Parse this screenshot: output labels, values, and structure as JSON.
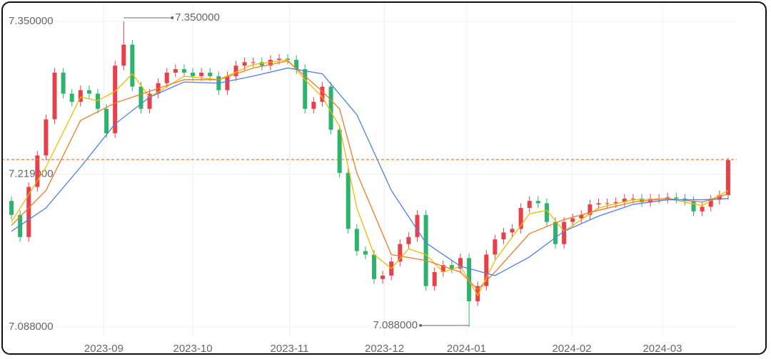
{
  "chart_data": {
    "type": "candlestick",
    "xlim": [
      -0.5,
      84
    ],
    "xticks": [
      {
        "value": 10.7,
        "label": "2023-09"
      },
      {
        "value": 21,
        "label": "2023-10"
      },
      {
        "value": 32.2,
        "label": "2023-11"
      },
      {
        "value": 43.2,
        "label": "2023-12"
      },
      {
        "value": 52.7,
        "label": "2024-01"
      },
      {
        "value": 64.9,
        "label": "2024-02"
      },
      {
        "value": 75.4,
        "label": "2024-03"
      }
    ],
    "ylim": [
      7.08,
      7.36
    ],
    "yticks": [
      {
        "value": 7.35,
        "label": "7.350000"
      },
      {
        "value": 7.219,
        "label": "7.219000"
      },
      {
        "value": 7.088,
        "label": "7.088000"
      }
    ],
    "grid": true,
    "up_color": "#e8404a",
    "down_color": "#2db36b",
    "open": [
      7.196,
      7.184,
      7.165,
      7.208,
      7.235,
      7.266,
      7.306,
      7.288,
      7.281,
      7.291,
      7.288,
      7.275,
      7.254,
      7.312,
      7.33,
      7.294,
      7.275,
      7.288,
      7.297,
      7.306,
      7.309,
      7.306,
      7.303,
      7.306,
      7.303,
      7.291,
      7.303,
      7.312,
      7.315,
      7.315,
      7.312,
      7.317,
      7.318,
      7.317,
      7.309,
      7.275,
      7.281,
      7.294,
      7.257,
      7.22,
      7.172,
      7.153,
      7.15,
      7.129,
      7.132,
      7.144,
      7.159,
      7.165,
      7.184,
      7.123,
      7.135,
      7.141,
      7.138,
      7.147,
      7.11,
      7.123,
      7.15,
      7.163,
      7.169,
      7.172,
      7.19,
      7.196,
      7.194,
      7.178,
      7.159,
      7.178,
      7.181,
      7.184,
      7.193,
      7.194,
      7.194,
      7.195,
      7.198,
      7.198,
      7.195,
      7.198,
      7.198,
      7.199,
      7.198,
      7.196,
      7.187,
      7.191,
      7.197,
      7.201
    ],
    "high": [
      7.2,
      7.188,
      7.212,
      7.239,
      7.27,
      7.31,
      7.31,
      7.292,
      7.295,
      7.295,
      7.292,
      7.279,
      7.316,
      7.35,
      7.334,
      7.298,
      7.292,
      7.301,
      7.31,
      7.313,
      7.313,
      7.31,
      7.31,
      7.31,
      7.307,
      7.307,
      7.316,
      7.319,
      7.319,
      7.319,
      7.321,
      7.322,
      7.322,
      7.321,
      7.313,
      7.285,
      7.298,
      7.298,
      7.261,
      7.224,
      7.176,
      7.157,
      7.154,
      7.136,
      7.148,
      7.163,
      7.169,
      7.188,
      7.188,
      7.139,
      7.145,
      7.145,
      7.151,
      7.151,
      7.127,
      7.154,
      7.167,
      7.173,
      7.176,
      7.194,
      7.2,
      7.2,
      7.198,
      7.182,
      7.182,
      7.185,
      7.188,
      7.197,
      7.198,
      7.198,
      7.199,
      7.202,
      7.202,
      7.202,
      7.202,
      7.202,
      7.203,
      7.203,
      7.202,
      7.2,
      7.195,
      7.201,
      7.205,
      7.233
    ],
    "low": [
      7.18,
      7.161,
      7.161,
      7.204,
      7.231,
      7.262,
      7.284,
      7.277,
      7.277,
      7.284,
      7.271,
      7.25,
      7.25,
      7.308,
      7.29,
      7.271,
      7.271,
      7.284,
      7.293,
      7.302,
      7.302,
      7.299,
      7.299,
      7.299,
      7.287,
      7.287,
      7.299,
      7.308,
      7.311,
      7.308,
      7.308,
      7.313,
      7.313,
      7.305,
      7.271,
      7.271,
      7.277,
      7.253,
      7.216,
      7.168,
      7.149,
      7.146,
      7.125,
      7.125,
      7.128,
      7.14,
      7.155,
      7.161,
      7.119,
      7.119,
      7.131,
      7.134,
      7.134,
      7.088,
      7.106,
      7.119,
      7.146,
      7.159,
      7.165,
      7.168,
      7.186,
      7.19,
      7.174,
      7.155,
      7.155,
      7.174,
      7.177,
      7.18,
      7.189,
      7.19,
      7.19,
      7.191,
      7.194,
      7.191,
      7.191,
      7.194,
      7.194,
      7.194,
      7.192,
      7.183,
      7.183,
      7.187,
      7.193,
      7.197
    ],
    "close": [
      7.184,
      7.165,
      7.208,
      7.235,
      7.266,
      7.306,
      7.288,
      7.281,
      7.291,
      7.288,
      7.275,
      7.254,
      7.312,
      7.33,
      7.294,
      7.275,
      7.288,
      7.297,
      7.306,
      7.309,
      7.306,
      7.303,
      7.306,
      7.303,
      7.291,
      7.303,
      7.312,
      7.315,
      7.315,
      7.312,
      7.317,
      7.318,
      7.317,
      7.309,
      7.275,
      7.281,
      7.294,
      7.257,
      7.22,
      7.172,
      7.153,
      7.15,
      7.129,
      7.132,
      7.144,
      7.159,
      7.165,
      7.184,
      7.123,
      7.135,
      7.141,
      7.138,
      7.147,
      7.11,
      7.123,
      7.15,
      7.163,
      7.169,
      7.172,
      7.19,
      7.196,
      7.194,
      7.178,
      7.159,
      7.178,
      7.181,
      7.184,
      7.193,
      7.194,
      7.194,
      7.195,
      7.198,
      7.198,
      7.195,
      7.198,
      7.198,
      7.199,
      7.198,
      7.196,
      7.187,
      7.191,
      7.197,
      7.201,
      7.231
    ],
    "lines": [
      {
        "color": "#f5b800",
        "x": [
          0,
          4,
          8,
          10,
          12,
          14,
          16,
          20,
          24,
          28,
          32,
          34,
          36,
          38,
          40,
          42,
          44,
          46,
          48,
          50,
          52,
          54,
          56,
          58,
          60,
          62,
          64,
          68,
          72,
          76,
          80,
          83
        ],
        "values": [
          7.178,
          7.225,
          7.285,
          7.282,
          7.29,
          7.305,
          7.285,
          7.303,
          7.3,
          7.313,
          7.317,
          7.3,
          7.285,
          7.26,
          7.19,
          7.15,
          7.138,
          7.155,
          7.15,
          7.135,
          7.14,
          7.115,
          7.145,
          7.165,
          7.185,
          7.188,
          7.17,
          7.19,
          7.197,
          7.198,
          7.192,
          7.205
        ]
      },
      {
        "color": "#f07a28",
        "x": [
          0,
          4,
          8,
          12,
          16,
          20,
          24,
          28,
          32,
          36,
          38,
          40,
          44,
          48,
          52,
          54,
          56,
          60,
          64,
          68,
          72,
          76,
          80,
          83
        ],
        "values": [
          7.175,
          7.205,
          7.265,
          7.28,
          7.29,
          7.3,
          7.3,
          7.31,
          7.316,
          7.29,
          7.275,
          7.22,
          7.15,
          7.145,
          7.135,
          7.12,
          7.135,
          7.168,
          7.18,
          7.188,
          7.195,
          7.198,
          7.195,
          7.202
        ]
      },
      {
        "color": "#4f7ee8",
        "x": [
          0,
          4,
          8,
          12,
          16,
          20,
          24,
          28,
          32,
          36,
          40,
          44,
          48,
          52,
          56,
          60,
          64,
          68,
          72,
          76,
          80,
          83
        ],
        "values": [
          7.17,
          7.19,
          7.225,
          7.262,
          7.285,
          7.298,
          7.297,
          7.303,
          7.31,
          7.305,
          7.27,
          7.205,
          7.16,
          7.14,
          7.132,
          7.148,
          7.17,
          7.183,
          7.193,
          7.197,
          7.197,
          7.198
        ]
      }
    ],
    "price_line": {
      "value": 7.2315,
      "color": "#f07a28"
    },
    "annotations": [
      {
        "text": "7.350000",
        "x": 13,
        "y": 7.35,
        "side": "right"
      },
      {
        "text": "7.088000",
        "x": 53,
        "y": 7.088,
        "side": "left"
      }
    ]
  }
}
